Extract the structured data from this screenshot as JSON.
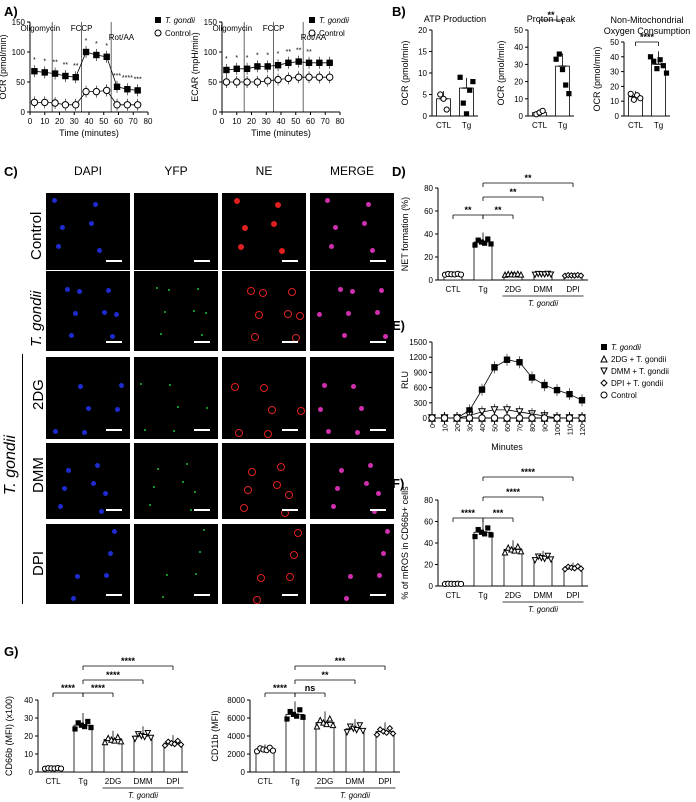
{
  "panel_labels": {
    "A": "A)",
    "B": "B)",
    "C": "C)",
    "D": "D)",
    "E": "E)",
    "F": "F)",
    "G": "G)"
  },
  "legend_tg": "T. gondii",
  "legend_ctrl": "Control",
  "chart_data": [
    {
      "id": "A-OCR",
      "type": "line",
      "ylabel": "OCR (pmol/min)",
      "xlabel": "Time (minutes)",
      "xlim": [
        0,
        80
      ],
      "ylim": [
        0,
        150
      ],
      "xticks": [
        0,
        10,
        20,
        30,
        40,
        50,
        60,
        70,
        80
      ],
      "yticks": [
        0,
        50,
        100,
        150
      ],
      "annotations": [
        "Oligomycin",
        "FCCP",
        "Rot/AA"
      ],
      "series": [
        {
          "name": "T. gondii",
          "x": [
            3,
            10,
            17,
            24,
            31,
            38,
            45,
            52,
            59,
            66,
            73
          ],
          "y": [
            68,
            66,
            64,
            60,
            58,
            100,
            95,
            92,
            42,
            38,
            36
          ]
        },
        {
          "name": "Control",
          "x": [
            3,
            10,
            17,
            24,
            31,
            38,
            45,
            52,
            59,
            66,
            73
          ],
          "y": [
            16,
            16,
            15,
            12,
            12,
            34,
            34,
            36,
            12,
            12,
            12
          ]
        }
      ],
      "significance": [
        "*",
        "*",
        "**",
        "**",
        "**",
        "*",
        "*",
        "*",
        "***",
        "****",
        "***"
      ]
    },
    {
      "id": "A-ECAR",
      "type": "line",
      "ylabel": "ECAR (mpH/min)",
      "xlabel": "Time (minutes)",
      "xlim": [
        0,
        80
      ],
      "ylim": [
        0,
        150
      ],
      "xticks": [
        0,
        10,
        20,
        30,
        40,
        50,
        60,
        70,
        80
      ],
      "yticks": [
        0,
        50,
        100,
        150
      ],
      "annotations": [
        "Oligomycin",
        "FCCP",
        "Rot/AA"
      ],
      "series": [
        {
          "name": "T. gondii",
          "x": [
            3,
            10,
            17,
            24,
            31,
            38,
            45,
            52,
            59,
            66,
            73
          ],
          "y": [
            70,
            72,
            72,
            76,
            76,
            78,
            82,
            84,
            82,
            82,
            82
          ]
        },
        {
          "name": "Control",
          "x": [
            3,
            10,
            17,
            24,
            31,
            38,
            45,
            52,
            59,
            66,
            73
          ],
          "y": [
            50,
            50,
            50,
            50,
            52,
            54,
            56,
            58,
            58,
            58,
            58
          ]
        }
      ],
      "significance": [
        "*",
        "*",
        "*",
        "*",
        "*",
        "*",
        "**",
        "**",
        "**"
      ]
    },
    {
      "id": "B-ATP",
      "type": "bar",
      "title": "ATP Production",
      "ylabel": "OCR (pmol/min)",
      "categories": [
        "CTL",
        "Tg"
      ],
      "values": [
        4,
        6.5
      ],
      "ylim": [
        0,
        20
      ],
      "yticks": [
        0,
        5,
        10,
        15,
        20
      ],
      "points": [
        [
          5,
          4,
          1.5
        ],
        [
          9,
          3,
          0.5,
          6,
          8
        ]
      ]
    },
    {
      "id": "B-Leak",
      "type": "bar",
      "title": "Proton Leak",
      "ylabel": "OCR (pmol/min)",
      "categories": [
        "CTL",
        "Tg"
      ],
      "values": [
        2,
        29
      ],
      "ylim": [
        0,
        50
      ],
      "yticks": [
        0,
        10,
        20,
        30,
        40,
        50
      ],
      "points": [
        [
          1,
          2,
          3
        ],
        [
          33,
          36,
          27,
          18,
          13
        ]
      ],
      "significance": [
        "**"
      ]
    },
    {
      "id": "B-NonMito",
      "type": "bar",
      "title": "Non-Mitochondrial Oxygen Consumption",
      "ylabel": "OCR (pmol/min)",
      "categories": [
        "CTL",
        "Tg"
      ],
      "values": [
        13,
        35
      ],
      "ylim": [
        0,
        50
      ],
      "yticks": [
        0,
        10,
        20,
        30,
        40,
        50
      ],
      "points": [
        [
          15,
          11,
          14,
          12
        ],
        [
          40,
          37,
          32,
          38,
          34,
          29
        ]
      ],
      "significance": [
        "****"
      ]
    },
    {
      "id": "D",
      "type": "bar",
      "ylabel": "NET formation (%)",
      "categories": [
        "CTL",
        "Tg",
        "2DG",
        "DMM",
        "DPI"
      ],
      "group_label": "T. gondii",
      "values": [
        5,
        33,
        5,
        5,
        4
      ],
      "ylim": [
        0,
        80
      ],
      "yticks": [
        0,
        20,
        40,
        60,
        80
      ],
      "significance": [
        "**",
        "**",
        "**",
        "**"
      ]
    },
    {
      "id": "E",
      "type": "line",
      "ylabel": "RLU",
      "xlabel": "Minutes",
      "xlim": [
        0,
        120
      ],
      "ylim": [
        0,
        1500
      ],
      "yticks": [
        0,
        300,
        600,
        900,
        1200,
        1500
      ],
      "xticks": [
        0,
        10,
        20,
        30,
        40,
        50,
        60,
        70,
        80,
        90,
        100,
        110,
        120
      ],
      "series": [
        {
          "name": "T. gondii",
          "x": [
            0,
            10,
            20,
            30,
            40,
            50,
            60,
            70,
            80,
            90,
            100,
            110,
            120
          ],
          "y": [
            0,
            0,
            0,
            150,
            560,
            1000,
            1150,
            1100,
            800,
            650,
            550,
            470,
            350
          ]
        },
        {
          "name": "2DG + T. gondii",
          "x": [
            0,
            10,
            20,
            30,
            40,
            50,
            60,
            70,
            80,
            90,
            100,
            110,
            120
          ],
          "y": [
            0,
            0,
            0,
            0,
            0,
            0,
            0,
            0,
            0,
            0,
            0,
            0,
            0
          ]
        },
        {
          "name": "DMM + T. gondii",
          "x": [
            0,
            10,
            20,
            30,
            40,
            50,
            60,
            70,
            80,
            90,
            100,
            110,
            120
          ],
          "y": [
            0,
            0,
            0,
            50,
            120,
            160,
            160,
            120,
            80,
            40,
            0,
            0,
            0
          ]
        },
        {
          "name": "DPI + T. gondii",
          "x": [
            0,
            10,
            20,
            30,
            40,
            50,
            60,
            70,
            80,
            90,
            100,
            110,
            120
          ],
          "y": [
            0,
            0,
            0,
            0,
            0,
            0,
            0,
            0,
            0,
            0,
            0,
            0,
            0
          ]
        },
        {
          "name": "Control",
          "x": [
            0,
            10,
            20,
            30,
            40,
            50,
            60,
            70,
            80,
            90,
            100,
            110,
            120
          ],
          "y": [
            0,
            0,
            0,
            0,
            0,
            0,
            0,
            0,
            0,
            0,
            0,
            0,
            0
          ]
        }
      ]
    },
    {
      "id": "F",
      "type": "bar",
      "ylabel": "% of mROS in CD66b+ cells",
      "categories": [
        "CTL",
        "Tg",
        "2DG",
        "DMM",
        "DPI"
      ],
      "group_label": "T. gondii",
      "values": [
        2,
        50,
        34,
        26,
        17
      ],
      "ylim": [
        0,
        80
      ],
      "yticks": [
        0,
        20,
        40,
        60,
        80
      ],
      "significance": [
        "****",
        "***",
        "****",
        "****"
      ]
    },
    {
      "id": "G-CD66b",
      "type": "bar",
      "ylabel": "CD66b (MFI) (x100)",
      "categories": [
        "CTL",
        "Tg",
        "2DG",
        "DMM",
        "DPI"
      ],
      "group_label": "T. gondii",
      "values": [
        2,
        26,
        18,
        20,
        16
      ],
      "ylim": [
        0,
        40
      ],
      "yticks": [
        0,
        10,
        20,
        30,
        40
      ],
      "significance": [
        "****",
        "****",
        "****",
        "****"
      ]
    },
    {
      "id": "G-CD11b",
      "type": "bar",
      "ylabel": "CD11b (MFI)",
      "categories": [
        "CTL",
        "Tg",
        "2DG",
        "DMM",
        "DPI"
      ],
      "group_label": "T. gondii",
      "values": [
        2500,
        6400,
        5500,
        4800,
        4500
      ],
      "ylim": [
        0,
        8000
      ],
      "yticks": [
        0,
        2000,
        4000,
        6000,
        8000
      ],
      "significance": [
        "****",
        "ns",
        "**",
        "***"
      ]
    }
  ],
  "microscopy": {
    "columns": [
      "DAPI",
      "YFP",
      "NE",
      "MERGE"
    ],
    "rows": [
      "Control",
      "T. gondii",
      "2DG",
      "DMM",
      "DPI"
    ],
    "group_label": "T. gondii"
  }
}
